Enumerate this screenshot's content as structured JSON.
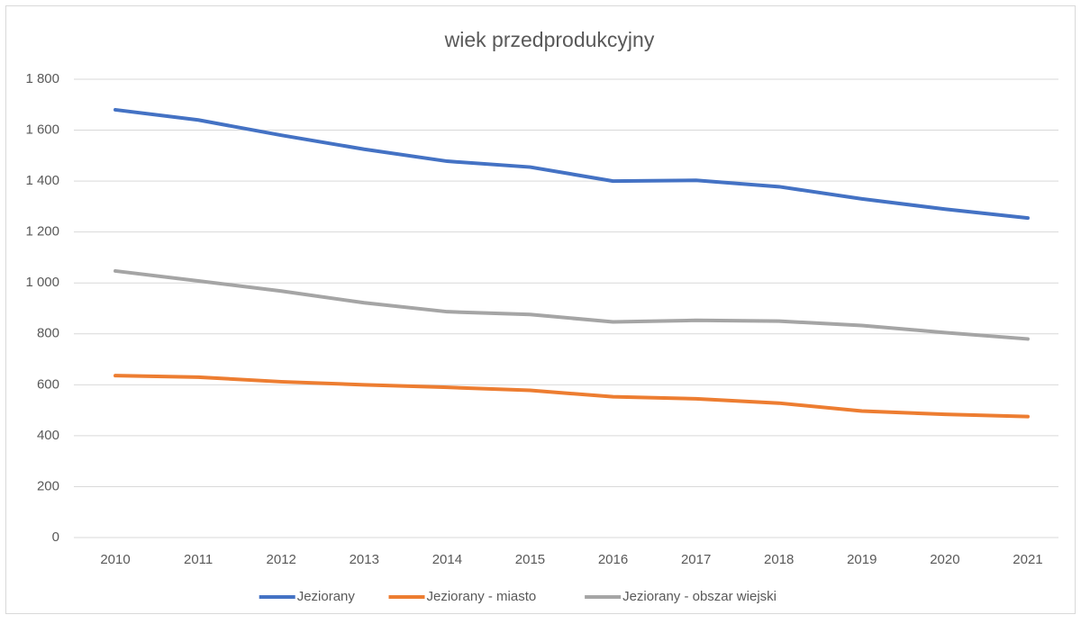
{
  "chart_data": {
    "type": "line",
    "title": "wiek przedprodukcyjny",
    "categories": [
      "2010",
      "2011",
      "2012",
      "2013",
      "2014",
      "2015",
      "2016",
      "2017",
      "2018",
      "2019",
      "2020",
      "2021"
    ],
    "series": [
      {
        "name": "Jeziorany",
        "color": "#4472c4",
        "values": [
          1680,
          1640,
          1580,
          1525,
          1478,
          1455,
          1400,
          1403,
          1378,
          1330,
          1290,
          1255
        ]
      },
      {
        "name": "Jeziorany - miasto",
        "color": "#ed7d31",
        "values": [
          636,
          630,
          612,
          600,
          590,
          578,
          553,
          545,
          528,
          497,
          484,
          475
        ]
      },
      {
        "name": "Jeziorany - obszar wiejski",
        "color": "#a5a5a5",
        "values": [
          1047,
          1008,
          968,
          922,
          887,
          876,
          847,
          853,
          850,
          833,
          805,
          780
        ]
      }
    ],
    "ylim": [
      0,
      1800
    ],
    "yticks": [
      0,
      200,
      400,
      600,
      800,
      {
        "value": 1000,
        "label": "1 000"
      },
      {
        "value": 1200,
        "label": "1 200"
      },
      {
        "value": 1400,
        "label": "1 400"
      },
      {
        "value": 1600,
        "label": "1 600"
      },
      {
        "value": 1800,
        "label": "1 800"
      }
    ],
    "grid": true,
    "legend": "bottom"
  }
}
